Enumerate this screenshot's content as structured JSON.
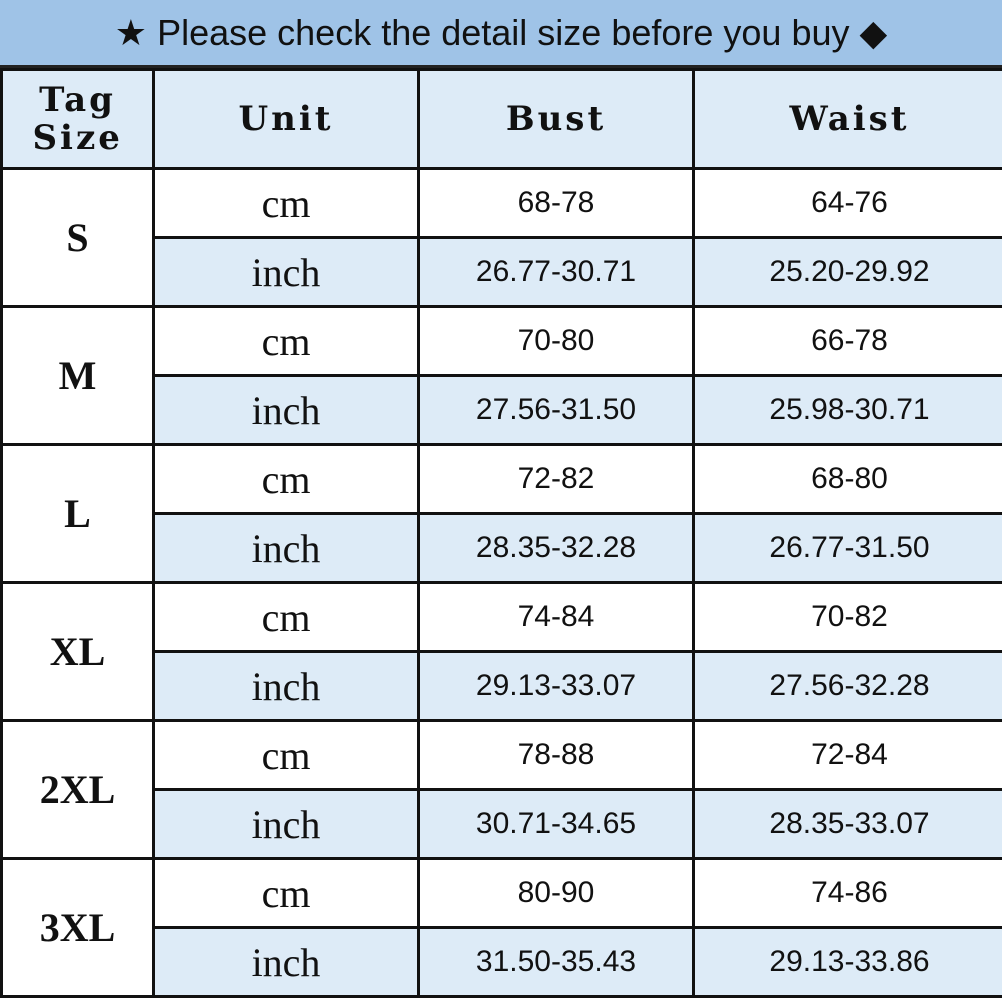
{
  "title": "★ Please check the detail size before you buy ◆",
  "header": {
    "tag_size": "Tag Size",
    "unit": "Unit",
    "bust": "Bust",
    "waist": "Waist"
  },
  "colors": {
    "title_bg": "#9fc3e7",
    "header_bg": "#ddebf7",
    "border": "#111111"
  },
  "rows": [
    {
      "size": "S",
      "cm": {
        "unit": "cm",
        "bust": "68-78",
        "waist": "64-76"
      },
      "inch": {
        "unit": "inch",
        "bust": "26.77-30.71",
        "waist": "25.20-29.92"
      }
    },
    {
      "size": "M",
      "cm": {
        "unit": "cm",
        "bust": "70-80",
        "waist": "66-78"
      },
      "inch": {
        "unit": "inch",
        "bust": "27.56-31.50",
        "waist": "25.98-30.71"
      }
    },
    {
      "size": "L",
      "cm": {
        "unit": "cm",
        "bust": "72-82",
        "waist": "68-80"
      },
      "inch": {
        "unit": "inch",
        "bust": "28.35-32.28",
        "waist": "26.77-31.50"
      }
    },
    {
      "size": "XL",
      "cm": {
        "unit": "cm",
        "bust": "74-84",
        "waist": "70-82"
      },
      "inch": {
        "unit": "inch",
        "bust": "29.13-33.07",
        "waist": "27.56-32.28"
      }
    },
    {
      "size": "2XL",
      "cm": {
        "unit": "cm",
        "bust": "78-88",
        "waist": "72-84"
      },
      "inch": {
        "unit": "inch",
        "bust": "30.71-34.65",
        "waist": "28.35-33.07"
      }
    },
    {
      "size": "3XL",
      "cm": {
        "unit": "cm",
        "bust": "80-90",
        "waist": "74-86"
      },
      "inch": {
        "unit": "inch",
        "bust": "31.50-35.43",
        "waist": "29.13-33.86"
      }
    }
  ]
}
